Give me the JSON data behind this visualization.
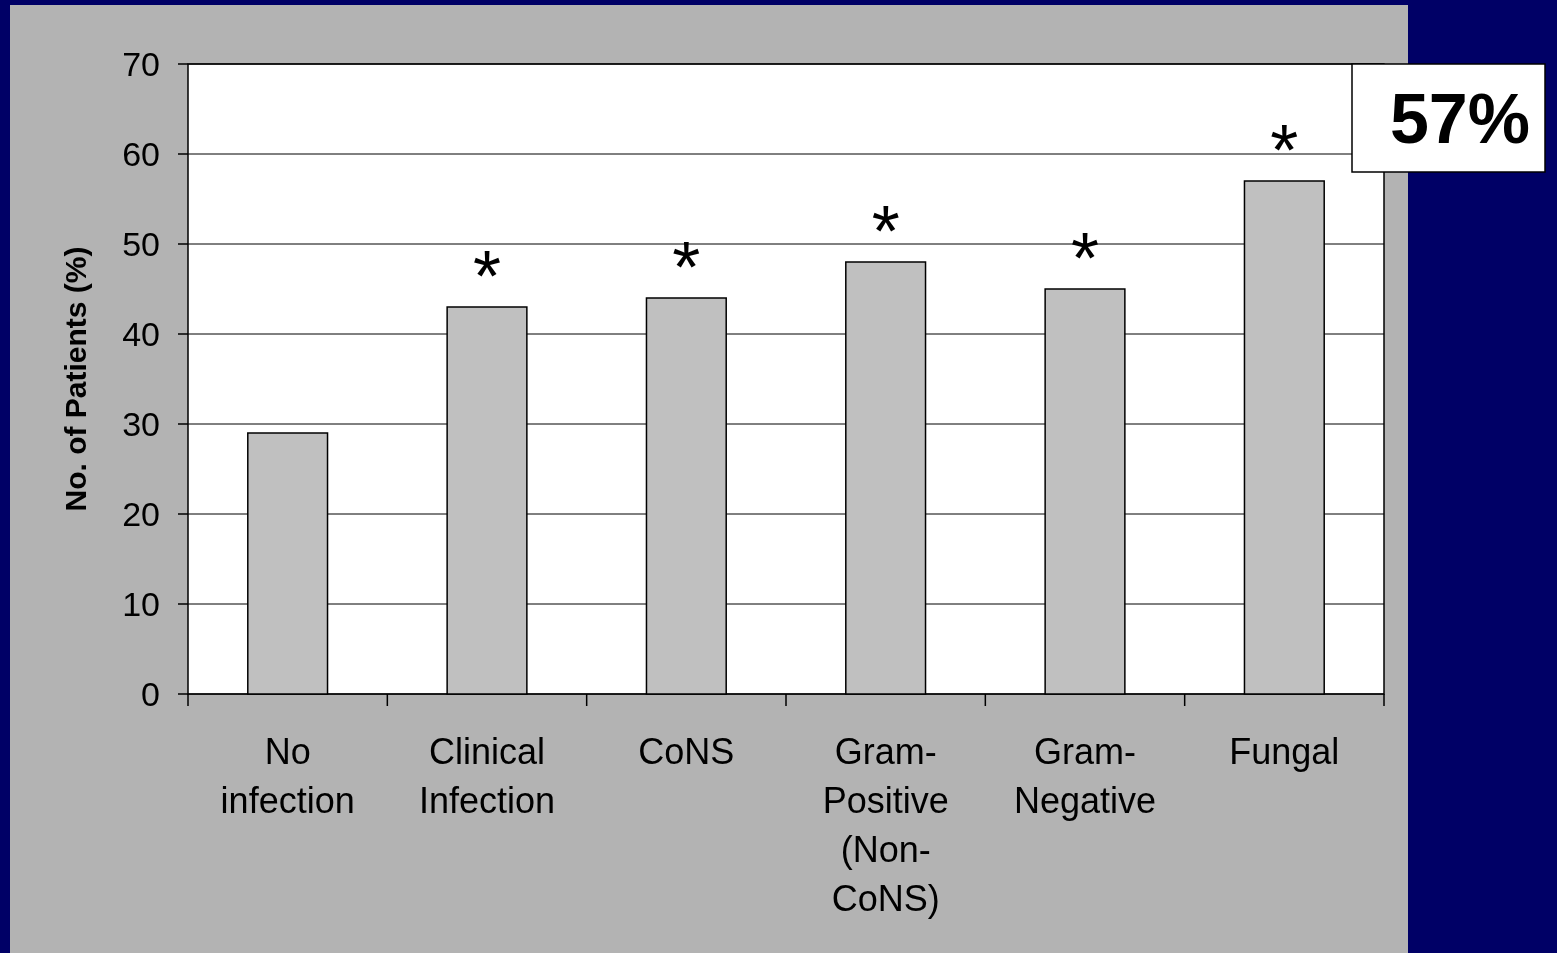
{
  "chart_data": {
    "type": "bar",
    "ylabel": "No. of Patients (%)",
    "categories": [
      "No infection",
      "Clinical Infection",
      "CoNS",
      "Gram-Positive (Non-CoNS)",
      "Gram-Negative",
      "Fungal"
    ],
    "values": [
      29,
      43,
      44,
      48,
      45,
      57
    ],
    "color": "#c0c0c0",
    "ylim": [
      0,
      70
    ],
    "yticks": [
      0,
      10,
      20,
      30,
      40,
      50,
      60,
      70
    ],
    "grid": "y",
    "annotations": [
      {
        "text": "*",
        "x": "Clinical Infection",
        "y": 43
      },
      {
        "text": "*",
        "x": "CoNS",
        "y": 44
      },
      {
        "text": "*",
        "x": "Gram-Positive (Non-CoNS)",
        "y": 48
      },
      {
        "text": "*",
        "x": "Gram-Negative",
        "y": 45
      },
      {
        "text": "*",
        "x": "Fungal",
        "y": 57
      },
      "57%"
    ]
  }
}
